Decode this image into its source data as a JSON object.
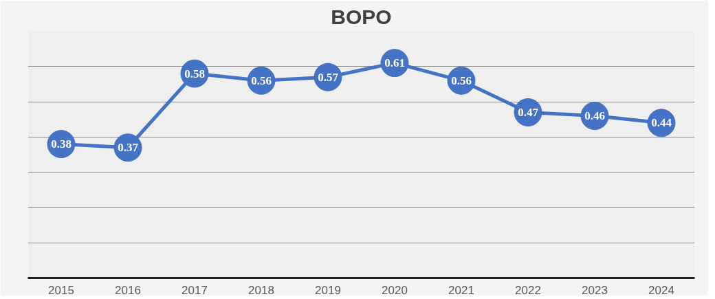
{
  "chart_data": {
    "type": "line",
    "title": "BOPO",
    "categories": [
      "2015",
      "2016",
      "2017",
      "2018",
      "2019",
      "2020",
      "2021",
      "2022",
      "2023",
      "2024"
    ],
    "series": [
      {
        "color": "#4472c4",
        "values": [
          0.38,
          0.37,
          0.58,
          0.56,
          0.57,
          0.61,
          0.56,
          0.47,
          0.46,
          0.44
        ]
      }
    ],
    "ylim": [
      0,
      0.7
    ],
    "yticks": [
      {
        "value": 0,
        "label": null
      },
      {
        "value": 0.1,
        "label": null
      },
      {
        "value": 0.2,
        "label": null
      },
      {
        "value": 0.3,
        "label": null
      },
      {
        "value": 0.4,
        "label": null
      },
      {
        "value": 0.5,
        "label": null
      },
      {
        "value": 0.6,
        "label": null
      }
    ],
    "tick_labels": "x",
    "grid": "y",
    "marker": "circle",
    "line_style": "solid",
    "data_labels": true
  }
}
